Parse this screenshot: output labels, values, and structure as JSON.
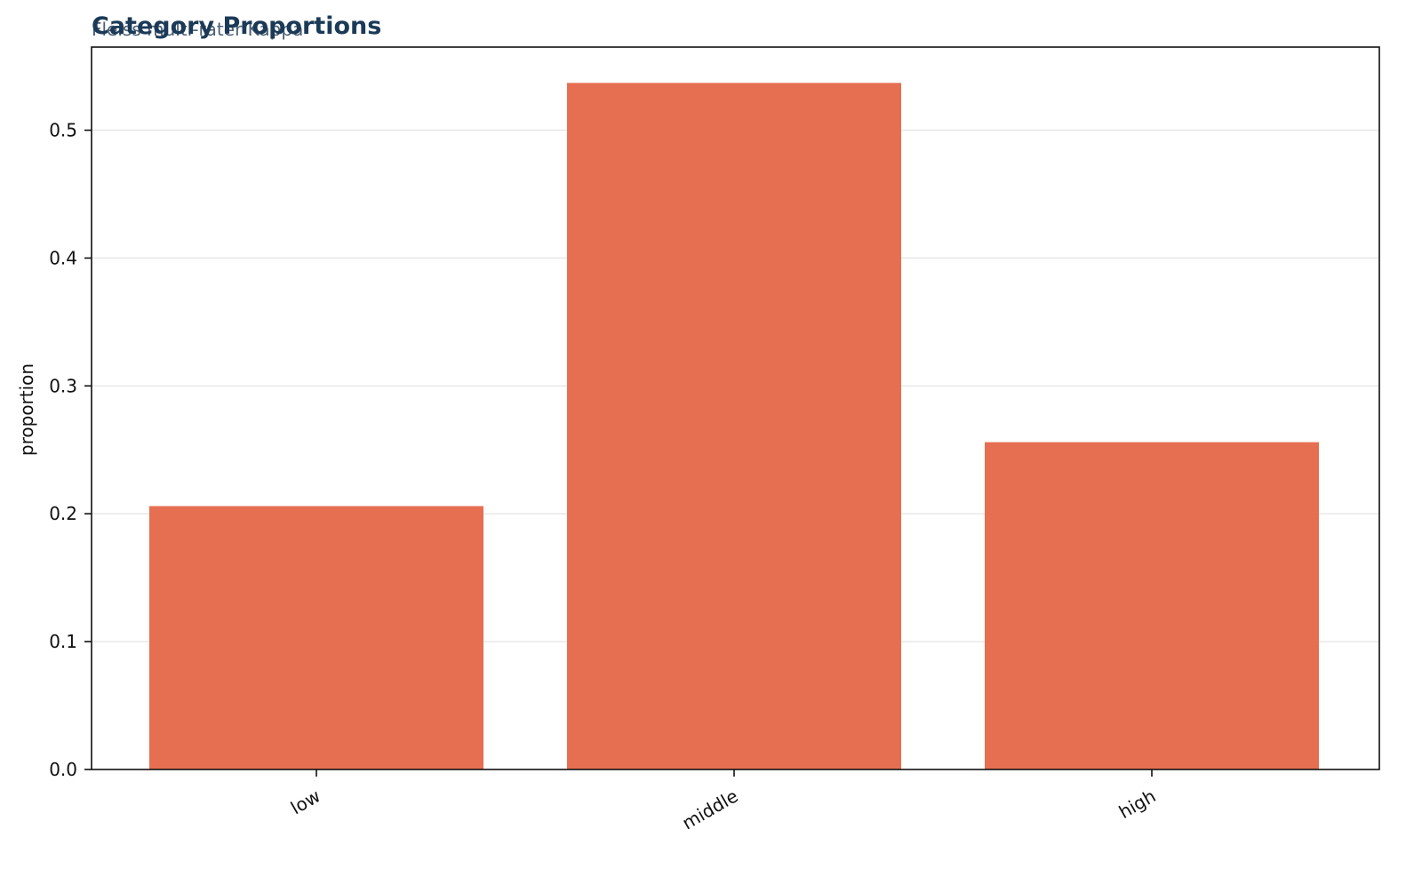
{
  "chart_data": {
    "type": "bar",
    "title": "Category Proportions",
    "subtitle": "Fleiss multi-rater Kappa",
    "xlabel": "",
    "ylabel": "proportion",
    "categories": [
      "low",
      "middle",
      "high"
    ],
    "values": [
      0.206,
      0.537,
      0.256
    ],
    "ylim": [
      0,
      0.565
    ],
    "yticks": [
      0.0,
      0.1,
      0.2,
      0.3,
      0.4,
      0.5
    ],
    "ytick_labels": [
      "0.0",
      "0.1",
      "0.2",
      "0.3",
      "0.4",
      "0.5"
    ],
    "bar_color": "#e66f52",
    "grid": "horizontal",
    "legend": "none"
  }
}
